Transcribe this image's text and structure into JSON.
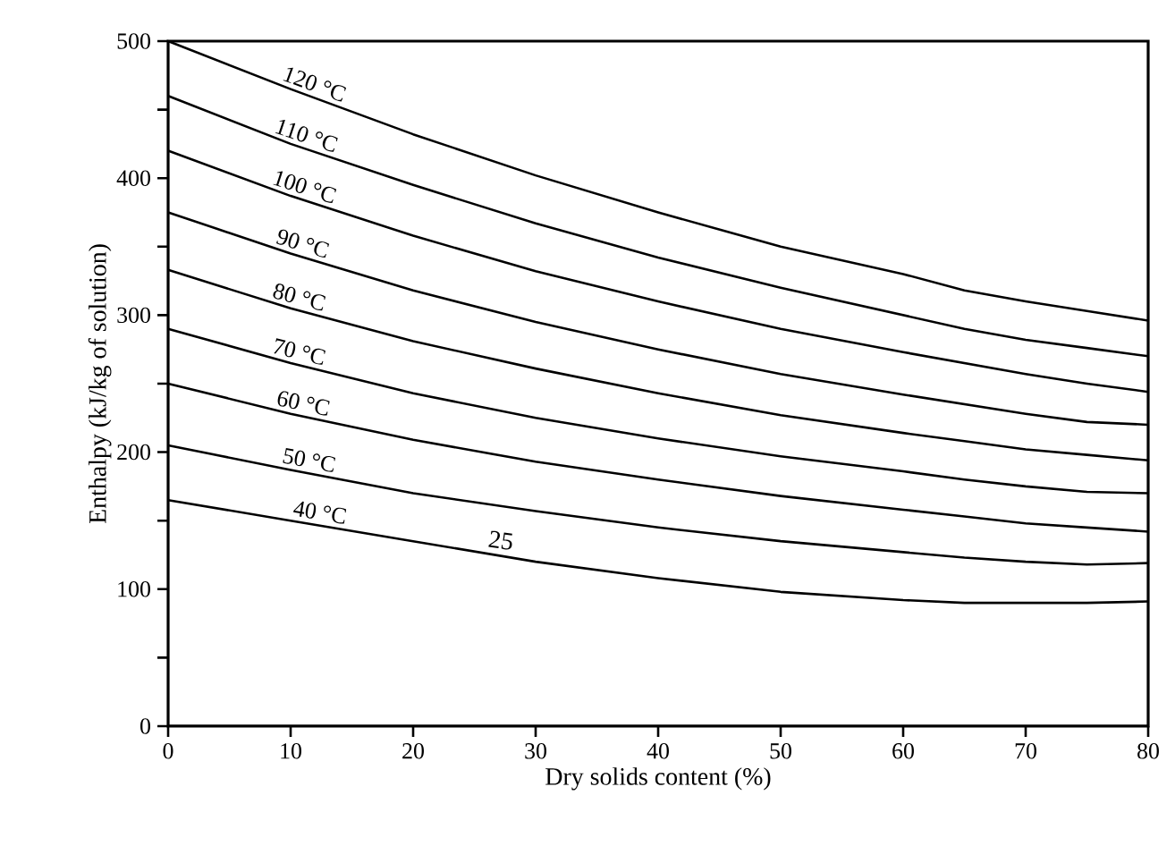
{
  "chart_data": {
    "type": "line",
    "xlabel": "Dry solids content (%)",
    "ylabel": "Enthalpy (kJ/kg of solution)",
    "x": [
      0,
      10,
      20,
      30,
      40,
      50,
      60,
      65,
      70,
      75,
      80
    ],
    "series": [
      {
        "name": "120 °C",
        "color": "#000000",
        "values": [
          500,
          465,
          432,
          402,
          375,
          350,
          330,
          318,
          310,
          303,
          296
        ]
      },
      {
        "name": "110 °C",
        "color": "#000000",
        "values": [
          460,
          425,
          395,
          367,
          342,
          320,
          300,
          290,
          282,
          276,
          270
        ]
      },
      {
        "name": "100 °C",
        "color": "#000000",
        "values": [
          420,
          387,
          358,
          332,
          310,
          290,
          273,
          265,
          257,
          250,
          244
        ]
      },
      {
        "name": "90 °C",
        "color": "#000000",
        "values": [
          375,
          345,
          318,
          295,
          275,
          257,
          242,
          235,
          228,
          222,
          220
        ]
      },
      {
        "name": "80 °C",
        "color": "#000000",
        "values": [
          333,
          305,
          281,
          261,
          243,
          227,
          214,
          208,
          202,
          198,
          194
        ]
      },
      {
        "name": "70 °C",
        "color": "#000000",
        "values": [
          290,
          265,
          243,
          225,
          210,
          197,
          186,
          180,
          175,
          171,
          170
        ]
      },
      {
        "name": "60 °C",
        "color": "#000000",
        "values": [
          250,
          228,
          209,
          193,
          180,
          168,
          158,
          153,
          148,
          145,
          142
        ]
      },
      {
        "name": "50 °C",
        "color": "#000000",
        "values": [
          205,
          187,
          170,
          157,
          145,
          135,
          127,
          123,
          120,
          118,
          119
        ]
      },
      {
        "name": "40 °C",
        "color": "#000000",
        "values": [
          165,
          150,
          135,
          120,
          108,
          98,
          92,
          90,
          90,
          90,
          91
        ]
      }
    ],
    "annotations": [
      {
        "text": "25",
        "x": 27,
        "y": 125
      }
    ],
    "xlim": [
      0,
      80
    ],
    "xticks": [
      0,
      10,
      20,
      30,
      40,
      50,
      60,
      70,
      80
    ],
    "ylim": [
      0,
      500
    ],
    "yticks": [
      0,
      {
        "value": 50,
        "label": null
      },
      100,
      {
        "value": 150,
        "label": null
      },
      200,
      {
        "value": 250,
        "label": null
      },
      300,
      {
        "value": 350,
        "label": null
      },
      400,
      {
        "value": 450,
        "label": null
      },
      500
    ],
    "grid": false,
    "marker": "none",
    "line_style": "solid"
  }
}
